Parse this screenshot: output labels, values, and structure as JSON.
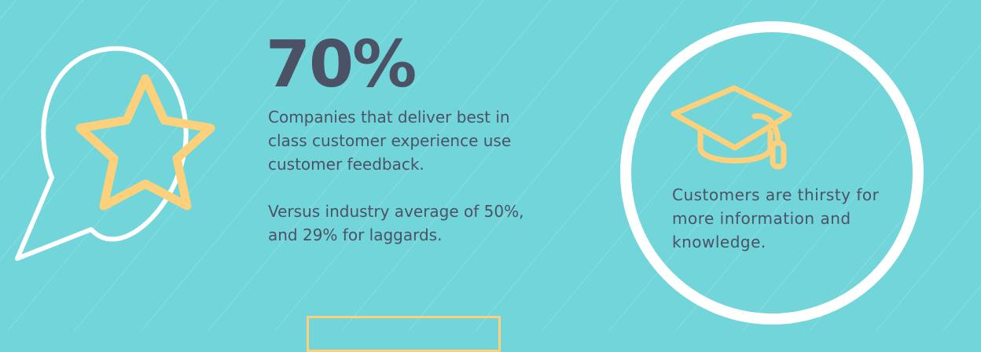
{
  "colors": {
    "background": "#72d5d9",
    "text": "#4b5266",
    "accent": "#fdd17c",
    "outline": "#ffffff"
  },
  "left_block": {
    "icon": "star-in-speech-bubble-icon",
    "stat": "70%",
    "description": "Companies that deliver best in class customer experience use customer feedback.",
    "comparison": "Versus industry average of 50%, and 29% for laggards."
  },
  "right_block": {
    "icon": "graduation-cap-icon",
    "description": "Customers are thirsty for more information and knowledge."
  }
}
